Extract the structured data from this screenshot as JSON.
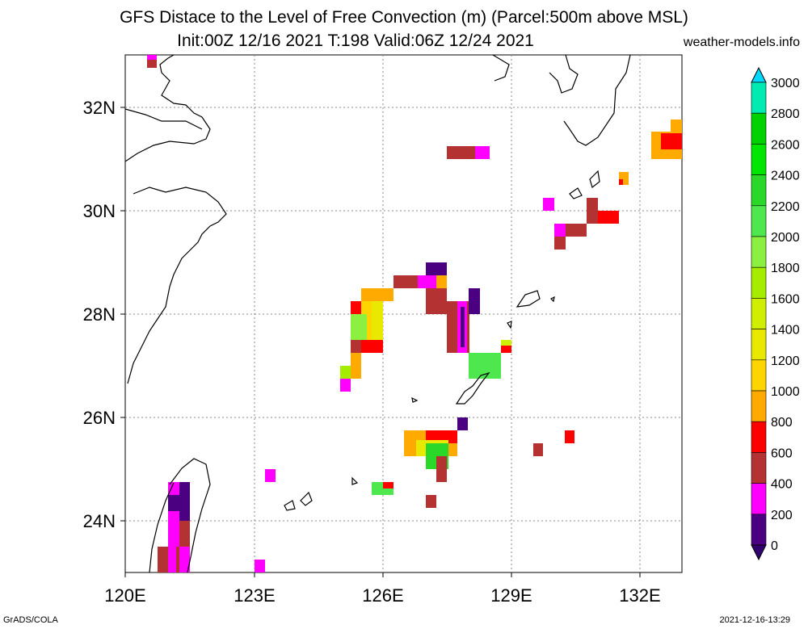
{
  "title": {
    "line1": "GFS Distace to the Level of Free Convection (m) (Parcel:500m above MSL)",
    "line2": "Init:00Z 12/16 2021 T:198 Valid:06Z 12/24 2021",
    "site": "weather-models.info"
  },
  "map": {
    "lon_range": [
      120,
      133
    ],
    "lat_range": [
      23,
      33
    ],
    "x_ticks": [
      "120E",
      "123E",
      "126E",
      "129E",
      "132E"
    ],
    "y_ticks": [
      "32N",
      "30N",
      "28N",
      "26N",
      "24N"
    ],
    "grid": true
  },
  "colorbar": {
    "labels": [
      "3000",
      "2800",
      "2600",
      "2400",
      "2200",
      "2000",
      "1800",
      "1600",
      "1400",
      "1200",
      "1000",
      "800",
      "600",
      "400",
      "200",
      "0"
    ],
    "colors": [
      "#00d8ff",
      "#00ebb2",
      "#00d100",
      "#00e600",
      "#2ad82a",
      "#4ee84e",
      "#8cf040",
      "#a6ec00",
      "#d0ee00",
      "#e8e800",
      "#ffd500",
      "#ffaa00",
      "#ff0000",
      "#b43232",
      "#ff00ff",
      "#4b0082",
      "#31006e"
    ]
  },
  "footer": {
    "left": "GrADS/COLA",
    "right": "2021-12-16-13:29"
  }
}
